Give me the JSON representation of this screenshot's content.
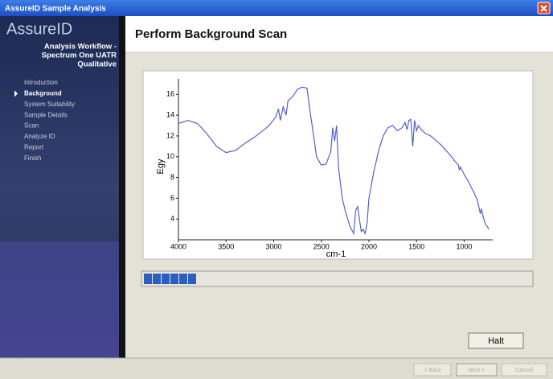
{
  "window": {
    "title": "AssureID Sample Analysis"
  },
  "sidebar": {
    "brand": "AssureID",
    "workflow_title": [
      "Analysis Workflow -",
      "Spectrum One UATR",
      "Qualitative"
    ],
    "steps": [
      "Introduction",
      "Background",
      "System Suitability",
      "Sample Details",
      "Scan",
      "Analyze ID",
      "Report",
      "Finish"
    ],
    "current_step": 1
  },
  "header": {
    "title": "Perform Background Scan"
  },
  "chart_data": {
    "type": "line",
    "color": "#5560c8",
    "ylabel": "Egy",
    "xlabel": "cm-1",
    "x": [
      4000,
      3900,
      3800,
      3700,
      3600,
      3500,
      3400,
      3300,
      3200,
      3100,
      3050,
      2980,
      2950,
      2930,
      2900,
      2870,
      2850,
      2800,
      2750,
      2700,
      2650,
      2620,
      2580,
      2550,
      2500,
      2450,
      2400,
      2380,
      2360,
      2340,
      2320,
      2280,
      2240,
      2200,
      2160,
      2140,
      2120,
      2100,
      2080,
      2060,
      2040,
      2020,
      2000,
      1950,
      1900,
      1850,
      1800,
      1750,
      1700,
      1650,
      1620,
      1600,
      1580,
      1560,
      1540,
      1520,
      1500,
      1480,
      1450,
      1400,
      1350,
      1300,
      1250,
      1200,
      1150,
      1100,
      1060,
      1050,
      1040,
      1000,
      950,
      900,
      860,
      830,
      820,
      800,
      780,
      740
    ],
    "values": [
      13.2,
      13.5,
      13.2,
      12.2,
      11.0,
      10.4,
      10.6,
      11.3,
      11.9,
      12.6,
      13.0,
      13.8,
      14.6,
      13.5,
      14.8,
      14.0,
      15.4,
      15.8,
      16.5,
      16.7,
      16.6,
      14.5,
      12.0,
      10.0,
      9.2,
      9.3,
      10.5,
      12.8,
      11.5,
      13.0,
      9.0,
      6.0,
      4.5,
      3.3,
      2.6,
      4.8,
      5.2,
      4.0,
      2.8,
      3.0,
      2.6,
      3.5,
      6.0,
      8.5,
      10.5,
      12.0,
      12.8,
      13.0,
      12.5,
      12.8,
      13.3,
      12.6,
      13.5,
      13.6,
      11.0,
      13.5,
      12.5,
      13.0,
      12.6,
      12.2,
      12.0,
      11.6,
      11.2,
      10.7,
      10.2,
      9.6,
      9.2,
      8.7,
      9.0,
      8.3,
      7.5,
      6.6,
      5.8,
      4.5,
      5.0,
      4.2,
      3.6,
      3.0
    ],
    "xlim": [
      4000,
      700
    ],
    "ylim": [
      2,
      17.5
    ],
    "xticks": [
      4000,
      3500,
      3000,
      2500,
      2000,
      1500,
      1000
    ],
    "yticks": [
      4,
      6,
      8,
      10,
      12,
      14,
      16
    ]
  },
  "progress": {
    "filled_blocks": 6
  },
  "buttons": {
    "halt": "Halt",
    "back": "< Back",
    "next": "Next >",
    "cancel": "Cancel"
  }
}
